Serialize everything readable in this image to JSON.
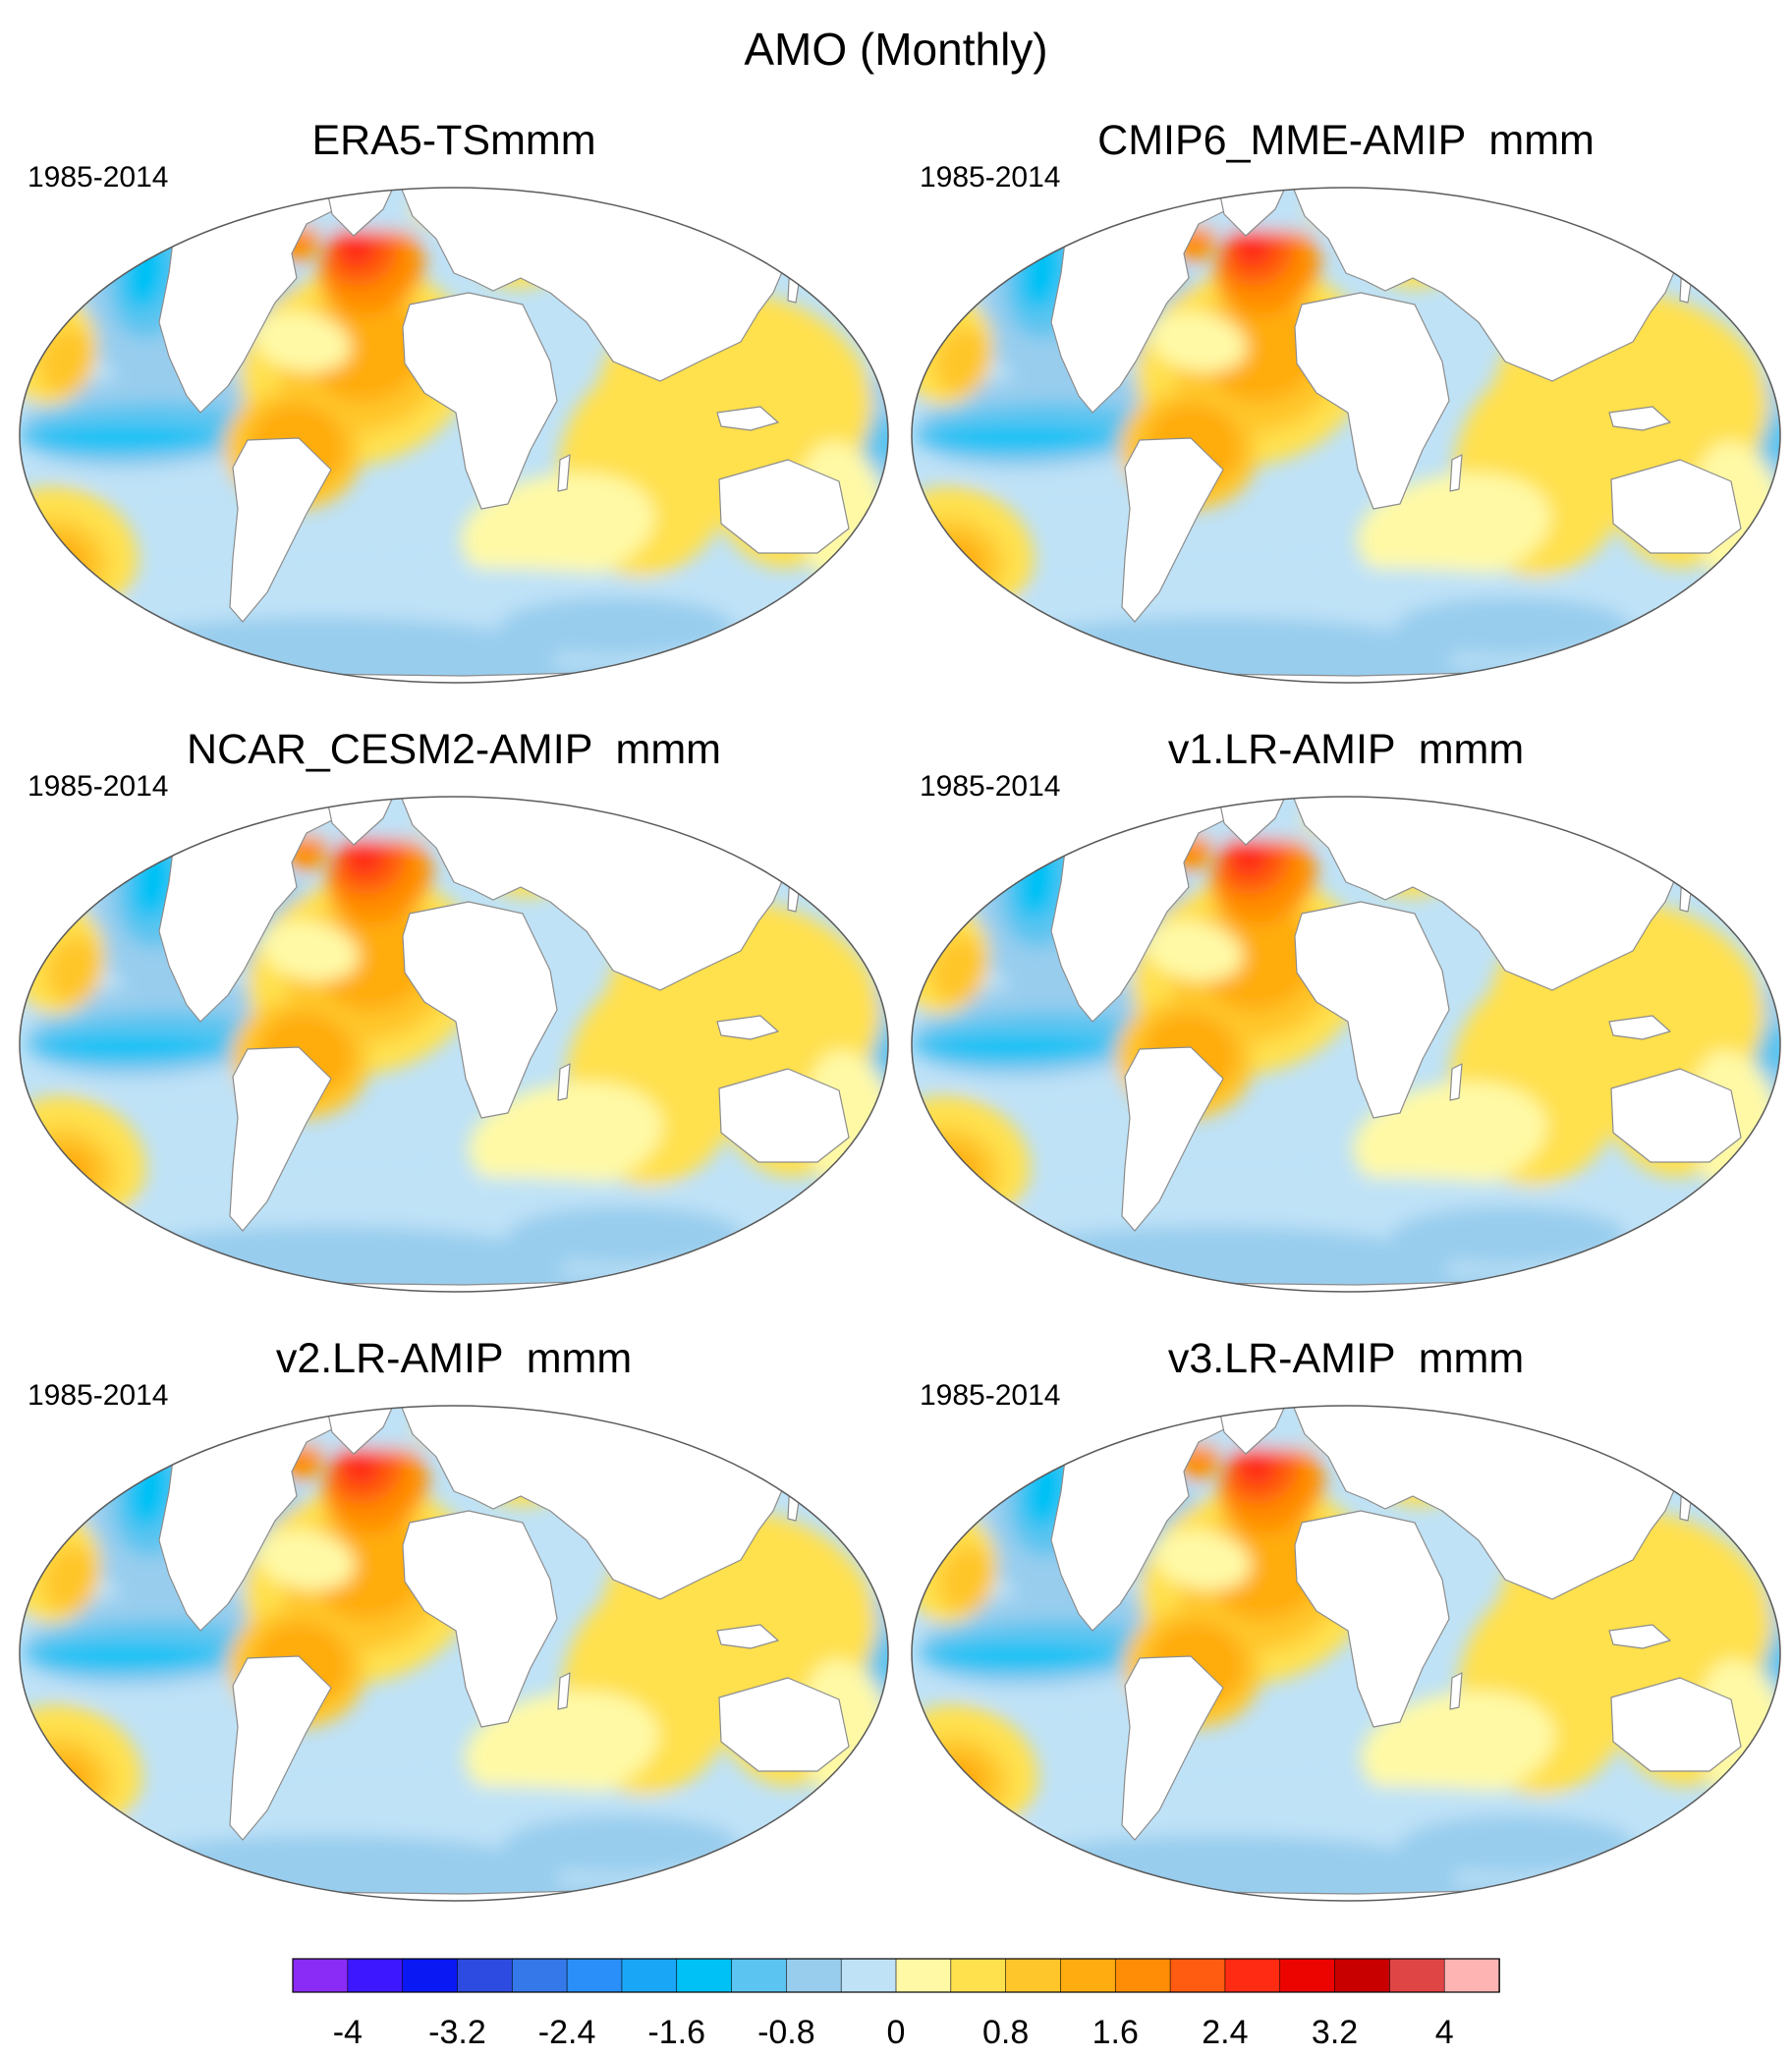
{
  "title": "AMO (Monthly)",
  "panels": [
    {
      "title": "ERA5-TSmmm",
      "period": "1985-2014"
    },
    {
      "title": "CMIP6_MME-AMIP  mmm",
      "period": "1985-2014"
    },
    {
      "title": "NCAR_CESM2-AMIP  mmm",
      "period": "1985-2014"
    },
    {
      "title": "v1.LR-AMIP  mmm",
      "period": "1985-2014"
    },
    {
      "title": "v2.LR-AMIP  mmm",
      "period": "1985-2014"
    },
    {
      "title": "v3.LR-AMIP  mmm",
      "period": "1985-2014"
    }
  ],
  "colorbar": {
    "boundaries": [
      "-4",
      "-3.6",
      "-3.2",
      "-2.8",
      "-2.4",
      "-2",
      "-1.6",
      "-1.2",
      "-0.8",
      "-0.4",
      "0",
      "0.4",
      "0.8",
      "1.2",
      "1.6",
      "2",
      "2.4",
      "2.8",
      "3.2",
      "3.6",
      "4"
    ],
    "labels": [
      "-4",
      "-3.2",
      "-2.4",
      "-1.6",
      "-0.8",
      "0",
      "0.8",
      "1.6",
      "2.4",
      "3.2",
      "4"
    ],
    "colors": [
      "#8a2cf6",
      "#3d17ff",
      "#0a18f4",
      "#2d4be0",
      "#3478ea",
      "#2a8ff8",
      "#1aa6f7",
      "#00c1f5",
      "#5bc4f0",
      "#98cdee",
      "#bfe2f7",
      "#fff9a6",
      "#ffe04d",
      "#ffc62b",
      "#ffac10",
      "#ff8d06",
      "#ff5c11",
      "#ff2b12",
      "#ec0500",
      "#c80000",
      "#e04545",
      "#ffb4b4"
    ]
  },
  "colors": {
    "ocean_base": "#bfe2f7",
    "land": "#ffffff",
    "coast": "#8c8c8c"
  }
}
